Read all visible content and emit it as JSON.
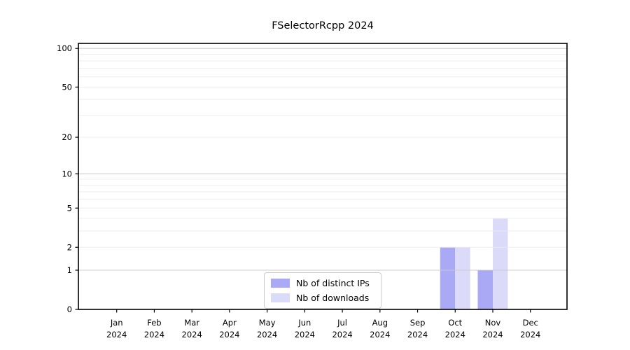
{
  "chart_data": {
    "type": "bar",
    "title": "FSelectorRcpp 2024",
    "categories": [
      "Jan",
      "Feb",
      "Mar",
      "Apr",
      "May",
      "Jun",
      "Jul",
      "Aug",
      "Sep",
      "Oct",
      "Nov",
      "Dec"
    ],
    "category_year": "2024",
    "series": [
      {
        "name": "Nb of distinct IPs",
        "color": "#a9a9f5",
        "values": [
          0,
          0,
          0,
          0,
          0,
          0,
          0,
          0,
          0,
          2,
          1,
          0
        ]
      },
      {
        "name": "Nb of downloads",
        "color": "#dbdbf9",
        "values": [
          0,
          0,
          0,
          0,
          0,
          0,
          0,
          0,
          0,
          2,
          4,
          0
        ]
      }
    ],
    "yscale": "log1p",
    "y_ticks": [
      0,
      1,
      2,
      5,
      10,
      20,
      50,
      100
    ],
    "ylim": [
      0,
      111
    ],
    "grid": {
      "major_values": [
        1,
        10,
        100
      ],
      "minor_values": [
        2,
        3,
        4,
        5,
        6,
        7,
        8,
        9,
        20,
        30,
        40,
        50,
        60,
        70,
        80,
        90
      ],
      "major_color": "#c9c9c9",
      "minor_color": "#ebebeb"
    },
    "axis_color": "#000000",
    "legend": {
      "position": "lower center"
    }
  }
}
